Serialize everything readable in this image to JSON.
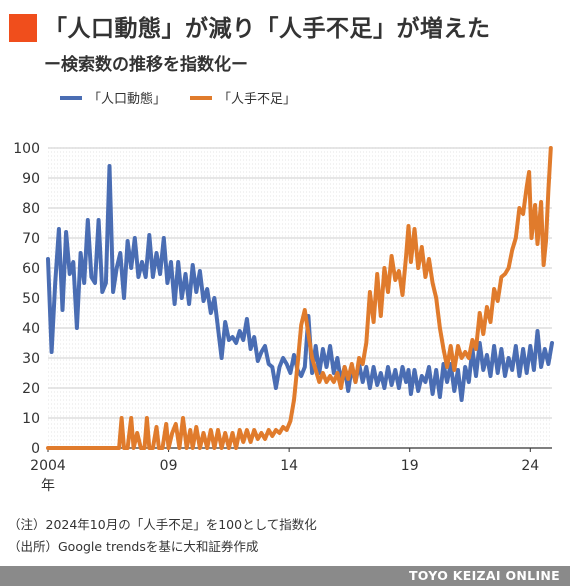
{
  "colors": {
    "title_mark": "#f04e1c",
    "series_population": "#4a6db3",
    "series_labor": "#e07b2c",
    "grid": "#cccccc",
    "footer_bg": "#8a8a8a"
  },
  "title": "「人口動態」が減り「人手不足」が増えた",
  "subtitle": "ー検索数の推移を指数化ー",
  "notes": [
    "（注）2024年10月の「人手不足」を100として指数化",
    "（出所）Google trendsを基に大和証券作成"
  ],
  "footer": "TOYO KEIZAI ONLINE",
  "chart_data": {
    "type": "line",
    "ylim": [
      0,
      100
    ],
    "yticks": [
      0,
      10,
      20,
      30,
      40,
      50,
      60,
      70,
      80,
      90,
      100
    ],
    "xlim": [
      2004.0,
      2024.9
    ],
    "xticks": [
      {
        "value": 2004,
        "label": "2004"
      },
      {
        "value": 2009,
        "label": "09"
      },
      {
        "value": 2014,
        "label": "14"
      },
      {
        "value": 2019,
        "label": "19"
      },
      {
        "value": 2024,
        "label": "24"
      }
    ],
    "x_unit_label": "年",
    "grid": true,
    "legend_position": "top-left",
    "series": [
      {
        "name": "「人口動態」",
        "color": "#4a6db3",
        "points": [
          [
            2004.0,
            63
          ],
          [
            2004.15,
            32
          ],
          [
            2004.3,
            55
          ],
          [
            2004.45,
            73
          ],
          [
            2004.6,
            46
          ],
          [
            2004.75,
            72
          ],
          [
            2004.9,
            58
          ],
          [
            2005.05,
            62
          ],
          [
            2005.2,
            40
          ],
          [
            2005.35,
            65
          ],
          [
            2005.5,
            55
          ],
          [
            2005.65,
            76
          ],
          [
            2005.8,
            57
          ],
          [
            2005.95,
            55
          ],
          [
            2006.1,
            76
          ],
          [
            2006.25,
            52
          ],
          [
            2006.4,
            55
          ],
          [
            2006.55,
            94
          ],
          [
            2006.7,
            52
          ],
          [
            2006.85,
            60
          ],
          [
            2007.0,
            65
          ],
          [
            2007.15,
            50
          ],
          [
            2007.3,
            69
          ],
          [
            2007.45,
            60
          ],
          [
            2007.6,
            70
          ],
          [
            2007.75,
            57
          ],
          [
            2007.9,
            62
          ],
          [
            2008.05,
            57
          ],
          [
            2008.2,
            71
          ],
          [
            2008.35,
            57
          ],
          [
            2008.5,
            65
          ],
          [
            2008.65,
            58
          ],
          [
            2008.8,
            70
          ],
          [
            2008.95,
            55
          ],
          [
            2009.1,
            62
          ],
          [
            2009.25,
            48
          ],
          [
            2009.4,
            62
          ],
          [
            2009.55,
            50
          ],
          [
            2009.7,
            58
          ],
          [
            2009.85,
            48
          ],
          [
            2010.0,
            61
          ],
          [
            2010.15,
            52
          ],
          [
            2010.3,
            59
          ],
          [
            2010.45,
            49
          ],
          [
            2010.6,
            53
          ],
          [
            2010.75,
            45
          ],
          [
            2010.9,
            50
          ],
          [
            2011.05,
            40
          ],
          [
            2011.2,
            30
          ],
          [
            2011.35,
            42
          ],
          [
            2011.5,
            36
          ],
          [
            2011.65,
            37
          ],
          [
            2011.8,
            35
          ],
          [
            2011.95,
            39
          ],
          [
            2012.1,
            36
          ],
          [
            2012.25,
            43
          ],
          [
            2012.4,
            33
          ],
          [
            2012.55,
            37
          ],
          [
            2012.7,
            29
          ],
          [
            2012.85,
            32
          ],
          [
            2013.0,
            34
          ],
          [
            2013.15,
            28
          ],
          [
            2013.3,
            27
          ],
          [
            2013.45,
            20
          ],
          [
            2013.6,
            27
          ],
          [
            2013.75,
            30
          ],
          [
            2013.9,
            28
          ],
          [
            2014.05,
            25
          ],
          [
            2014.2,
            31
          ],
          [
            2014.35,
            26
          ],
          [
            2014.5,
            24
          ],
          [
            2014.65,
            27
          ],
          [
            2014.8,
            44
          ],
          [
            2014.95,
            25
          ],
          [
            2015.1,
            34
          ],
          [
            2015.25,
            25
          ],
          [
            2015.4,
            33
          ],
          [
            2015.55,
            27
          ],
          [
            2015.7,
            34
          ],
          [
            2015.85,
            25
          ],
          [
            2016.0,
            30
          ],
          [
            2016.15,
            22
          ],
          [
            2016.3,
            27
          ],
          [
            2016.45,
            19
          ],
          [
            2016.6,
            27
          ],
          [
            2016.75,
            22
          ],
          [
            2016.9,
            28
          ],
          [
            2017.05,
            22
          ],
          [
            2017.2,
            27
          ],
          [
            2017.35,
            20
          ],
          [
            2017.5,
            27
          ],
          [
            2017.65,
            21
          ],
          [
            2017.8,
            25
          ],
          [
            2017.95,
            20
          ],
          [
            2018.1,
            27
          ],
          [
            2018.25,
            21
          ],
          [
            2018.4,
            26
          ],
          [
            2018.55,
            20
          ],
          [
            2018.7,
            27
          ],
          [
            2018.85,
            22
          ],
          [
            2018.95,
            26
          ],
          [
            2019.05,
            18
          ],
          [
            2019.2,
            26
          ],
          [
            2019.35,
            19
          ],
          [
            2019.5,
            24
          ],
          [
            2019.65,
            22
          ],
          [
            2019.8,
            27
          ],
          [
            2019.95,
            18
          ],
          [
            2020.1,
            26
          ],
          [
            2020.25,
            17
          ],
          [
            2020.4,
            28
          ],
          [
            2020.55,
            22
          ],
          [
            2020.7,
            28
          ],
          [
            2020.85,
            19
          ],
          [
            2021.0,
            26
          ],
          [
            2021.15,
            16
          ],
          [
            2021.3,
            27
          ],
          [
            2021.45,
            22
          ],
          [
            2021.6,
            33
          ],
          [
            2021.75,
            24
          ],
          [
            2021.9,
            35
          ],
          [
            2022.05,
            26
          ],
          [
            2022.2,
            31
          ],
          [
            2022.35,
            24
          ],
          [
            2022.5,
            34
          ],
          [
            2022.65,
            25
          ],
          [
            2022.8,
            33
          ],
          [
            2022.95,
            24
          ],
          [
            2023.1,
            30
          ],
          [
            2023.25,
            26
          ],
          [
            2023.4,
            34
          ],
          [
            2023.55,
            24
          ],
          [
            2023.7,
            33
          ],
          [
            2023.85,
            25
          ],
          [
            2024.0,
            34
          ],
          [
            2024.15,
            26
          ],
          [
            2024.3,
            39
          ],
          [
            2024.45,
            27
          ],
          [
            2024.6,
            33
          ],
          [
            2024.75,
            28
          ],
          [
            2024.9,
            35
          ]
        ]
      },
      {
        "name": "「人手不足」",
        "color": "#e07b2c",
        "points": [
          [
            2004.0,
            0
          ],
          [
            2004.4,
            0
          ],
          [
            2004.8,
            0
          ],
          [
            2005.2,
            0
          ],
          [
            2005.6,
            0
          ],
          [
            2006.0,
            0
          ],
          [
            2006.4,
            0
          ],
          [
            2006.8,
            0
          ],
          [
            2006.95,
            0
          ],
          [
            2007.05,
            10
          ],
          [
            2007.15,
            0
          ],
          [
            2007.3,
            0
          ],
          [
            2007.45,
            10
          ],
          [
            2007.55,
            0
          ],
          [
            2007.7,
            5
          ],
          [
            2007.85,
            0
          ],
          [
            2008.0,
            0
          ],
          [
            2008.1,
            10
          ],
          [
            2008.2,
            0
          ],
          [
            2008.35,
            0
          ],
          [
            2008.5,
            7
          ],
          [
            2008.6,
            0
          ],
          [
            2008.75,
            0
          ],
          [
            2008.9,
            8
          ],
          [
            2009.0,
            0
          ],
          [
            2009.15,
            5
          ],
          [
            2009.3,
            8
          ],
          [
            2009.45,
            0
          ],
          [
            2009.6,
            10
          ],
          [
            2009.75,
            0
          ],
          [
            2009.9,
            6
          ],
          [
            2010.0,
            0
          ],
          [
            2010.15,
            7
          ],
          [
            2010.3,
            0
          ],
          [
            2010.45,
            5
          ],
          [
            2010.6,
            0
          ],
          [
            2010.75,
            6
          ],
          [
            2010.9,
            0
          ],
          [
            2011.05,
            6
          ],
          [
            2011.2,
            0
          ],
          [
            2011.35,
            5
          ],
          [
            2011.5,
            0
          ],
          [
            2011.65,
            5
          ],
          [
            2011.8,
            0
          ],
          [
            2011.95,
            6
          ],
          [
            2012.1,
            2
          ],
          [
            2012.25,
            6
          ],
          [
            2012.4,
            2
          ],
          [
            2012.55,
            6
          ],
          [
            2012.7,
            3
          ],
          [
            2012.85,
            5
          ],
          [
            2013.0,
            3
          ],
          [
            2013.15,
            6
          ],
          [
            2013.3,
            4
          ],
          [
            2013.45,
            6
          ],
          [
            2013.6,
            5
          ],
          [
            2013.75,
            7
          ],
          [
            2013.9,
            6
          ],
          [
            2014.05,
            9
          ],
          [
            2014.2,
            16
          ],
          [
            2014.35,
            28
          ],
          [
            2014.5,
            41
          ],
          [
            2014.65,
            46
          ],
          [
            2014.8,
            38
          ],
          [
            2014.95,
            30
          ],
          [
            2015.1,
            26
          ],
          [
            2015.25,
            22
          ],
          [
            2015.4,
            25
          ],
          [
            2015.55,
            22
          ],
          [
            2015.7,
            24
          ],
          [
            2015.85,
            22
          ],
          [
            2016.0,
            25
          ],
          [
            2016.15,
            20
          ],
          [
            2016.3,
            27
          ],
          [
            2016.45,
            23
          ],
          [
            2016.6,
            28
          ],
          [
            2016.75,
            22
          ],
          [
            2016.9,
            30
          ],
          [
            2017.05,
            28
          ],
          [
            2017.2,
            35
          ],
          [
            2017.35,
            52
          ],
          [
            2017.5,
            42
          ],
          [
            2017.65,
            58
          ],
          [
            2017.8,
            44
          ],
          [
            2017.95,
            60
          ],
          [
            2018.1,
            52
          ],
          [
            2018.25,
            64
          ],
          [
            2018.4,
            56
          ],
          [
            2018.55,
            59
          ],
          [
            2018.7,
            51
          ],
          [
            2018.85,
            64
          ],
          [
            2018.95,
            74
          ],
          [
            2019.05,
            62
          ],
          [
            2019.2,
            73
          ],
          [
            2019.35,
            60
          ],
          [
            2019.5,
            67
          ],
          [
            2019.65,
            57
          ],
          [
            2019.8,
            63
          ],
          [
            2019.95,
            55
          ],
          [
            2020.1,
            50
          ],
          [
            2020.25,
            40
          ],
          [
            2020.4,
            33
          ],
          [
            2020.55,
            27
          ],
          [
            2020.7,
            34
          ],
          [
            2020.85,
            26
          ],
          [
            2021.0,
            34
          ],
          [
            2021.15,
            30
          ],
          [
            2021.3,
            32
          ],
          [
            2021.45,
            30
          ],
          [
            2021.6,
            36
          ],
          [
            2021.75,
            33
          ],
          [
            2021.9,
            45
          ],
          [
            2022.05,
            38
          ],
          [
            2022.2,
            47
          ],
          [
            2022.35,
            42
          ],
          [
            2022.5,
            53
          ],
          [
            2022.65,
            49
          ],
          [
            2022.8,
            57
          ],
          [
            2022.95,
            58
          ],
          [
            2023.1,
            60
          ],
          [
            2023.25,
            66
          ],
          [
            2023.4,
            70
          ],
          [
            2023.55,
            80
          ],
          [
            2023.7,
            78
          ],
          [
            2023.85,
            87
          ],
          [
            2023.95,
            92
          ],
          [
            2024.05,
            70
          ],
          [
            2024.2,
            81
          ],
          [
            2024.3,
            68
          ],
          [
            2024.45,
            82
          ],
          [
            2024.55,
            61
          ],
          [
            2024.65,
            69
          ],
          [
            2024.75,
            86
          ],
          [
            2024.85,
            100
          ]
        ]
      }
    ]
  }
}
